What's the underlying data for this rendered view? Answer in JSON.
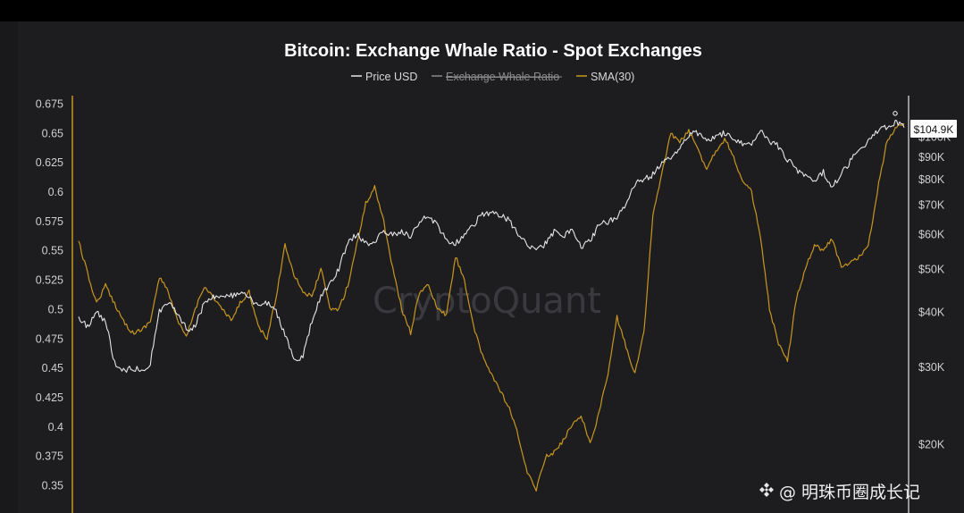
{
  "chart_data": {
    "type": "line",
    "title": "Bitcoin: Exchange Whale Ratio - Spot Exchanges",
    "watermark": "CryptoQuant",
    "legend_position": "top-center",
    "grid": false,
    "left_axis": {
      "ticks": [
        "0.675",
        "0.65",
        "0.625",
        "0.6",
        "0.575",
        "0.55",
        "0.525",
        "0.5",
        "0.475",
        "0.45",
        "0.425",
        "0.4",
        "0.375",
        "0.35"
      ],
      "range": [
        0.343,
        0.68
      ]
    },
    "right_axis": {
      "scale": "log",
      "ticks": [
        "$100K",
        "$90K",
        "$80K",
        "$70K",
        "$60K",
        "$50K",
        "$40K",
        "$30K",
        "$20K"
      ],
      "tick_values": [
        100000,
        90000,
        80000,
        70000,
        60000,
        50000,
        40000,
        30000,
        20000
      ],
      "current_price_label": "$104.9K",
      "current_price": 104900
    },
    "series": [
      {
        "name": "Price USD",
        "color": "#e6e6e6",
        "axis": "right",
        "visible": true,
        "values": [
          39000,
          37000,
          40000,
          38000,
          30500,
          29500,
          29800,
          29500,
          30500,
          40000,
          42000,
          40000,
          36500,
          37000,
          42000,
          43500,
          43000,
          43500,
          44000,
          43000,
          41000,
          42000,
          40000,
          35500,
          31000,
          31500,
          38000,
          43500,
          46000,
          50000,
          57500,
          60000,
          57000,
          58000,
          61000,
          59500,
          61000,
          59500,
          64000,
          66000,
          63000,
          58000,
          57000,
          60000,
          63000,
          67000,
          67000,
          66000,
          64500,
          59500,
          57000,
          55500,
          57000,
          61000,
          59000,
          62000,
          56000,
          58000,
          63000,
          64000,
          66000,
          70000,
          78000,
          80000,
          82000,
          87000,
          90000,
          94000,
          101000,
          102000,
          98000,
          100000,
          102000,
          98000,
          96000,
          97000,
          104000,
          98000,
          95000,
          89000,
          84000,
          82000,
          80000,
          83000,
          77000,
          82000,
          88000,
          95000,
          97000,
          103000,
          105000,
          108000,
          104900
        ]
      },
      {
        "name": "Exchange Whale Ratio",
        "color": "#8a8a8a",
        "axis": "left",
        "visible": false
      },
      {
        "name": "SMA(30)",
        "color": "#c8961e",
        "axis": "left",
        "visible": true,
        "values": [
          0.558,
          0.53,
          0.505,
          0.52,
          0.505,
          0.49,
          0.48,
          0.482,
          0.49,
          0.527,
          0.515,
          0.49,
          0.476,
          0.5,
          0.52,
          0.51,
          0.5,
          0.49,
          0.505,
          0.515,
          0.485,
          0.475,
          0.51,
          0.555,
          0.53,
          0.515,
          0.51,
          0.535,
          0.5,
          0.5,
          0.52,
          0.555,
          0.59,
          0.604,
          0.575,
          0.535,
          0.5,
          0.48,
          0.515,
          0.52,
          0.5,
          0.495,
          0.545,
          0.525,
          0.485,
          0.46,
          0.445,
          0.43,
          0.415,
          0.392,
          0.36,
          0.347,
          0.374,
          0.378,
          0.388,
          0.402,
          0.41,
          0.385,
          0.412,
          0.445,
          0.493,
          0.468,
          0.445,
          0.48,
          0.58,
          0.615,
          0.65,
          0.642,
          0.652,
          0.636,
          0.62,
          0.635,
          0.645,
          0.63,
          0.608,
          0.6,
          0.56,
          0.5,
          0.47,
          0.455,
          0.51,
          0.535,
          0.555,
          0.55,
          0.56,
          0.535,
          0.54,
          0.545,
          0.553,
          0.6,
          0.64,
          0.655,
          0.658
        ]
      }
    ]
  }
}
